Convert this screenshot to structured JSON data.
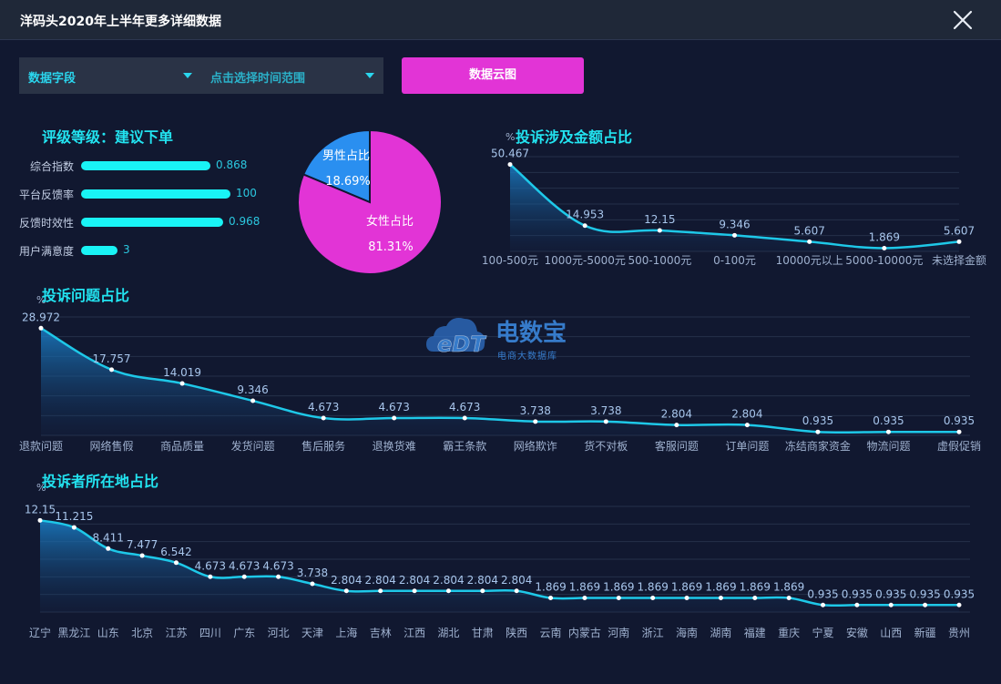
{
  "window": {
    "title": "洋码头2020年上半年更多详细数据"
  },
  "filters": {
    "field_label": "数据字段",
    "time_label": "点击选择时间范围",
    "cloud_button": "数据云图"
  },
  "rating": {
    "title": "评级等级：建议下单",
    "items": [
      {
        "label": "综合指数",
        "value": "0.868",
        "fraction": 0.71
      },
      {
        "label": "平台反馈率",
        "value": "100",
        "fraction": 0.82
      },
      {
        "label": "反馈时效性",
        "value": "0.968",
        "fraction": 0.78
      },
      {
        "label": "用户满意度",
        "value": "3",
        "fraction": 0.2
      }
    ]
  },
  "watermark": {
    "logo_text": "eDT",
    "cn_name": "电数宝",
    "tagline": "电商大数据库"
  },
  "colors": {
    "cyan": "#22e3f0",
    "magenta": "#e234d6",
    "blue": "#2a8ff0",
    "line": "#1ec8e8",
    "bg": "#111830"
  },
  "chart_data": [
    {
      "type": "pie",
      "slices": [
        {
          "name": "男性占比",
          "value": 18.69,
          "label": "18.69%",
          "color": "#2a8ff0"
        },
        {
          "name": "女性占比",
          "value": 81.31,
          "label": "81.31%",
          "color": "#e234d6"
        }
      ]
    },
    {
      "type": "area",
      "title": "投诉涉及金额占比",
      "ylabel": "%",
      "categories": [
        "100-500元",
        "1000元-5000元",
        "500-1000元",
        "0-100元",
        "10000元以上",
        "5000-10000元",
        "未选择金额"
      ],
      "values": [
        50.467,
        14.953,
        12.15,
        9.346,
        5.607,
        1.869,
        5.607
      ],
      "labels": [
        "50.467",
        "14.953",
        "12.15",
        "9.346",
        "5.607",
        "1.869",
        "5.607"
      ],
      "ylim": [
        0,
        55
      ]
    },
    {
      "type": "area",
      "title": "投诉问题占比",
      "ylabel": "%",
      "categories": [
        "退款问题",
        "网络售假",
        "商品质量",
        "发货问题",
        "售后服务",
        "退换货难",
        "霸王条款",
        "网络欺诈",
        "货不对板",
        "客服问题",
        "订单问题",
        "冻结商家资金",
        "物流问题",
        "虚假促销"
      ],
      "values": [
        28.972,
        17.757,
        14.019,
        9.346,
        4.673,
        4.673,
        4.673,
        3.738,
        3.738,
        2.804,
        2.804,
        0.935,
        0.935,
        0.935
      ],
      "labels": [
        "28.972",
        "17.757",
        "14.019",
        "9.346",
        "4.673",
        "4.673",
        "4.673",
        "3.738",
        "3.738",
        "2.804",
        "2.804",
        "0.935",
        "0.935",
        "0.935"
      ],
      "ylim": [
        0,
        32
      ]
    },
    {
      "type": "area",
      "title": "投诉者所在地占比",
      "ylabel": "%",
      "categories": [
        "辽宁",
        "黑龙江",
        "山东",
        "北京",
        "江苏",
        "四川",
        "广东",
        "河北",
        "天津",
        "上海",
        "吉林",
        "江西",
        "湖北",
        "甘肃",
        "陕西",
        "云南",
        "内蒙古",
        "河南",
        "浙江",
        "海南",
        "湖南",
        "福建",
        "重庆",
        "宁夏",
        "安徽",
        "山西",
        "新疆",
        "贵州"
      ],
      "values": [
        12.15,
        11.215,
        8.411,
        7.477,
        6.542,
        4.673,
        4.673,
        4.673,
        3.738,
        2.804,
        2.804,
        2.804,
        2.804,
        2.804,
        2.804,
        1.869,
        1.869,
        1.869,
        1.869,
        1.869,
        1.869,
        1.869,
        1.869,
        0.935,
        0.935,
        0.935,
        0.935,
        0.935
      ],
      "labels": [
        "12.15",
        "11.215",
        "8.411",
        "7.477",
        "6.542",
        "4.673",
        "4.673",
        "4.673",
        "3.738",
        "2.804",
        "2.804",
        "2.804",
        "2.804",
        "2.804",
        "2.804",
        "1.869",
        "1.869",
        "1.869",
        "1.869",
        "1.869",
        "1.869",
        "1.869",
        "1.869",
        "0.935",
        "0.935",
        "0.935",
        "0.935",
        "0.935"
      ],
      "ylim": [
        0,
        14
      ]
    }
  ]
}
